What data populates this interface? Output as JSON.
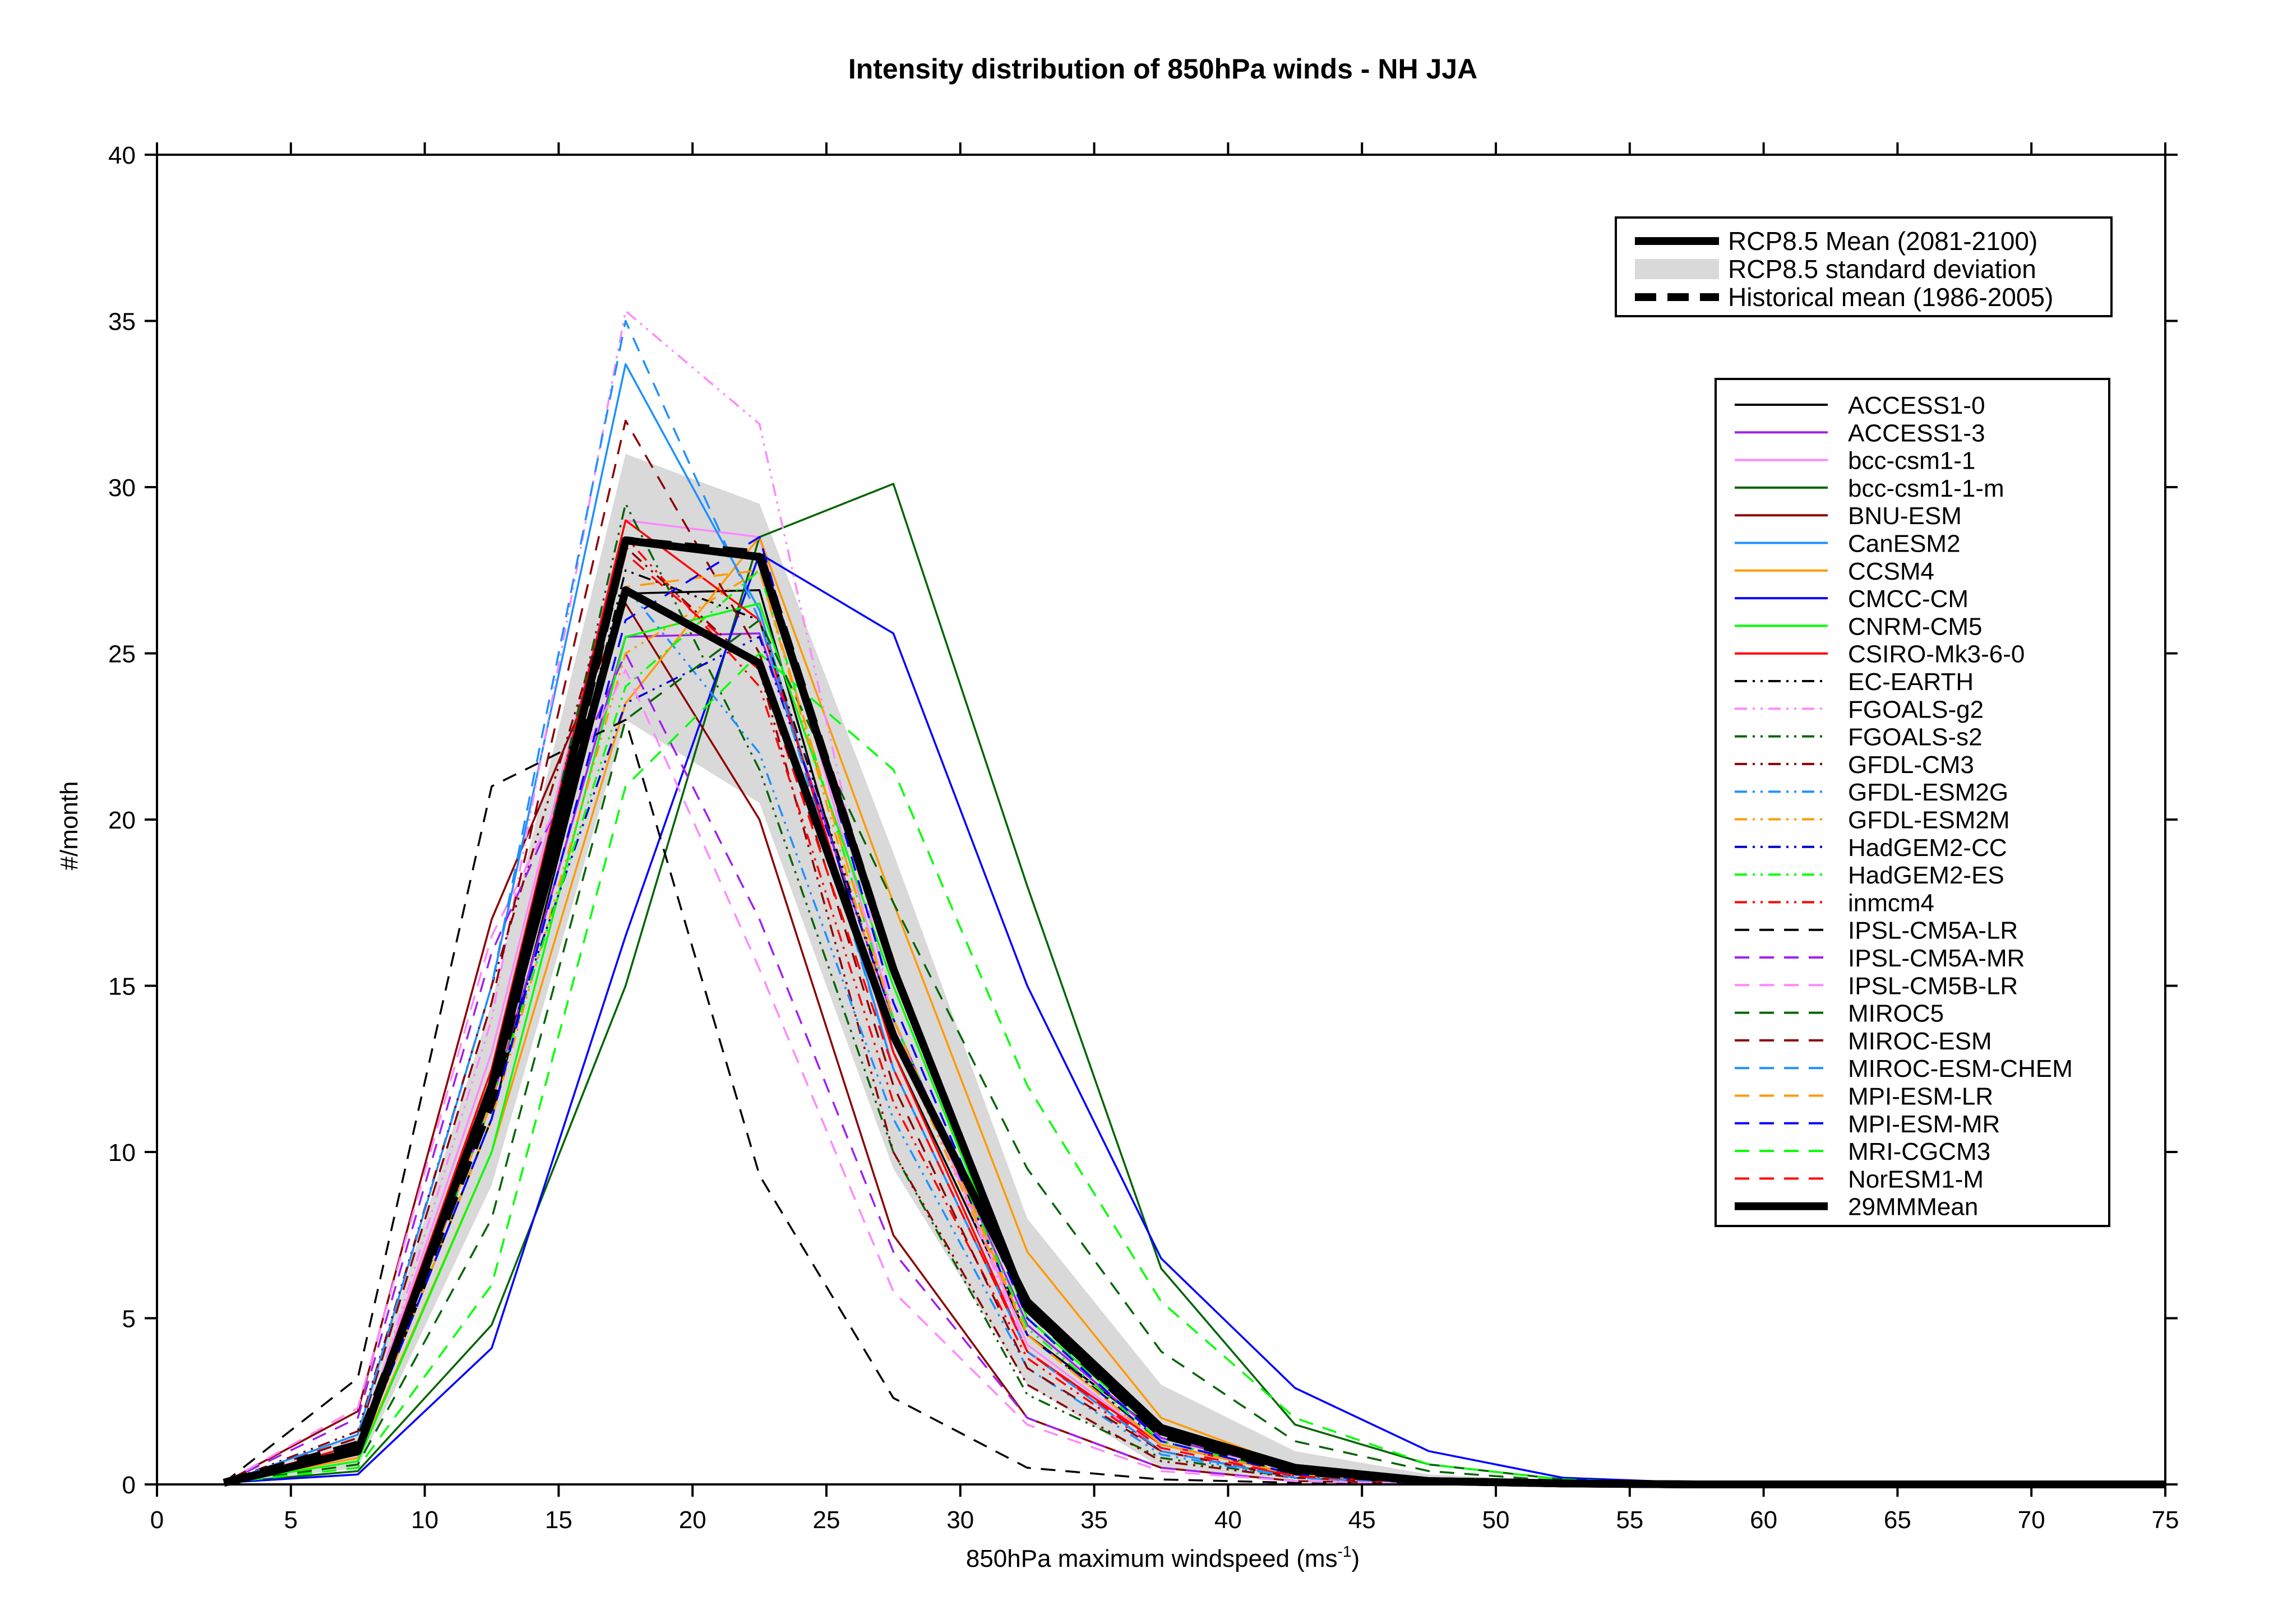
{
  "chart_data": {
    "type": "line",
    "title": "Intensity distribution of 850hPa winds - NH JJA",
    "xlabel": "850hPa maximum windspeed (ms",
    "xlabel_sup": "-1",
    "xlabel_close": ")",
    "ylabel": "#/month",
    "xlim": [
      0,
      75
    ],
    "ylim": [
      0,
      40
    ],
    "xticks": [
      0,
      5,
      10,
      15,
      20,
      25,
      30,
      35,
      40,
      45,
      50,
      55,
      60,
      65,
      70,
      75
    ],
    "yticks": [
      0,
      5,
      10,
      15,
      20,
      25,
      30,
      35,
      40
    ],
    "grid": false,
    "x": [
      2.5,
      7.5,
      12.5,
      17.5,
      22.5,
      27.5,
      32.5,
      37.5,
      42.5,
      47.5,
      52.5,
      57.5,
      62.5,
      67.5,
      72.5,
      75
    ],
    "std_band": {
      "label": "RCP8.5 standard deviation",
      "color": "#d9d9d9",
      "upper": [
        0.1,
        1.5,
        14.5,
        31.0,
        29.5,
        19.0,
        8.0,
        3.0,
        1.0,
        0.3,
        0.1,
        0.05,
        0,
        0,
        0,
        0
      ],
      "lower": [
        0.0,
        0.5,
        9.0,
        23.0,
        20.5,
        9.5,
        3.0,
        0.5,
        0.1,
        0.0,
        0.0,
        0,
        0,
        0,
        0,
        0
      ]
    },
    "summary_series": [
      {
        "name": "RCP8.5 Mean (2081-2100)",
        "color": "#000000",
        "dash": "solid",
        "values": [
          0.05,
          1.0,
          12.0,
          26.9,
          24.7,
          13.5,
          5.5,
          1.7,
          0.5,
          0.1,
          0.03,
          0,
          0,
          0,
          0,
          0
        ]
      },
      {
        "name": "Historical mean (1986-2005)",
        "color": "#000000",
        "dash": "dashed",
        "values": [
          0.05,
          1.2,
          11.5,
          28.4,
          28.0,
          15.5,
          5.3,
          1.5,
          0.4,
          0.1,
          0.03,
          0,
          0,
          0,
          0,
          0
        ]
      }
    ],
    "series": [
      {
        "name": "ACCESS1-0",
        "color": "#000000",
        "dash": "solid",
        "values": [
          0.05,
          0.9,
          11.0,
          26.8,
          26.9,
          13.0,
          4.5,
          1.5,
          0.4,
          0.1,
          0.02,
          0,
          0,
          0,
          0,
          0
        ]
      },
      {
        "name": "ACCESS1-3",
        "color": "#a020f0",
        "dash": "solid",
        "values": [
          0.05,
          1.0,
          11.5,
          25.5,
          25.6,
          14.0,
          4.8,
          1.4,
          0.4,
          0.1,
          0.02,
          0,
          0,
          0,
          0,
          0
        ]
      },
      {
        "name": "bcc-csm1-1",
        "color": "#ff88ff",
        "dash": "solid",
        "values": [
          0.05,
          1.2,
          13.0,
          29.0,
          28.5,
          14.0,
          4.2,
          1.2,
          0.3,
          0.1,
          0.02,
          0,
          0,
          0,
          0,
          0
        ]
      },
      {
        "name": "bcc-csm1-1-m",
        "color": "#006400",
        "dash": "solid",
        "values": [
          0.05,
          0.4,
          4.8,
          15.0,
          28.5,
          30.1,
          18.0,
          6.5,
          1.8,
          0.6,
          0.15,
          0.05,
          0,
          0,
          0,
          0
        ]
      },
      {
        "name": "BNU-ESM",
        "color": "#8b0000",
        "dash": "solid",
        "values": [
          0.05,
          2.2,
          17.0,
          26.5,
          20.0,
          7.5,
          2.0,
          0.5,
          0.1,
          0.03,
          0,
          0,
          0,
          0,
          0,
          0
        ]
      },
      {
        "name": "CanESM2",
        "color": "#1e90ff",
        "dash": "solid",
        "values": [
          0.05,
          1.5,
          15.0,
          33.7,
          26.3,
          12.5,
          4.0,
          1.0,
          0.2,
          0.05,
          0,
          0,
          0,
          0,
          0,
          0
        ]
      },
      {
        "name": "CCSM4",
        "color": "#ff9900",
        "dash": "solid",
        "values": [
          0.05,
          0.8,
          10.0,
          23.5,
          28.5,
          17.5,
          7.0,
          2.0,
          0.5,
          0.1,
          0.02,
          0,
          0,
          0,
          0,
          0
        ]
      },
      {
        "name": "CMCC-CM",
        "color": "#0000ff",
        "dash": "solid",
        "values": [
          0.05,
          0.3,
          4.1,
          16.5,
          28.0,
          25.6,
          15.0,
          6.8,
          2.9,
          1.0,
          0.2,
          0.05,
          0,
          0,
          0,
          0
        ]
      },
      {
        "name": "CNRM-CM5",
        "color": "#00ff00",
        "dash": "solid",
        "values": [
          0.05,
          0.7,
          10.0,
          25.5,
          26.5,
          15.0,
          5.0,
          1.5,
          0.4,
          0.1,
          0.02,
          0,
          0,
          0,
          0,
          0
        ]
      },
      {
        "name": "CSIRO-Mk3-6-0",
        "color": "#ff0000",
        "dash": "solid",
        "values": [
          0.05,
          1.2,
          12.5,
          29.0,
          26.0,
          13.0,
          4.0,
          1.2,
          0.3,
          0.05,
          0,
          0,
          0,
          0,
          0,
          0
        ]
      },
      {
        "name": "EC-EARTH",
        "color": "#000000",
        "dash": "dashdotdot",
        "values": [
          0.05,
          0.9,
          11.5,
          27.5,
          26.0,
          14.0,
          4.5,
          1.3,
          0.3,
          0.05,
          0,
          0,
          0,
          0,
          0,
          0
        ]
      },
      {
        "name": "FGOALS-g2",
        "color": "#ff88ff",
        "dash": "dashdotdot",
        "values": [
          0.05,
          1.0,
          14.0,
          35.3,
          31.9,
          14.0,
          4.0,
          1.0,
          0.2,
          0.05,
          0,
          0,
          0,
          0,
          0,
          0
        ]
      },
      {
        "name": "FGOALS-s2",
        "color": "#006400",
        "dash": "dashdotdot",
        "values": [
          0.05,
          0.9,
          12.0,
          29.5,
          21.5,
          10.0,
          2.7,
          0.8,
          0.2,
          0.03,
          0,
          0,
          0,
          0,
          0,
          0
        ]
      },
      {
        "name": "GFDL-CM3",
        "color": "#8b0000",
        "dash": "dashdotdot",
        "values": [
          0.05,
          1.6,
          15.0,
          28.2,
          24.5,
          10.0,
          3.0,
          0.7,
          0.2,
          0.03,
          0,
          0,
          0,
          0,
          0,
          0
        ]
      },
      {
        "name": "GFDL-ESM2G",
        "color": "#1e90ff",
        "dash": "dashdotdot",
        "values": [
          0.05,
          1.0,
          12.0,
          27.0,
          22.0,
          11.0,
          3.5,
          0.9,
          0.2,
          0.03,
          0,
          0,
          0,
          0,
          0,
          0
        ]
      },
      {
        "name": "GFDL-ESM2M",
        "color": "#ff9900",
        "dash": "dashdotdot",
        "values": [
          0.05,
          0.9,
          11.0,
          25.0,
          27.5,
          13.5,
          4.5,
          1.2,
          0.3,
          0.05,
          0,
          0,
          0,
          0,
          0,
          0
        ]
      },
      {
        "name": "HadGEM2-CC",
        "color": "#0000cc",
        "dash": "dashdotdot",
        "values": [
          0.05,
          1.1,
          12.0,
          23.5,
          25.5,
          14.0,
          4.5,
          1.3,
          0.3,
          0.05,
          0,
          0,
          0,
          0,
          0,
          0
        ]
      },
      {
        "name": "HadGEM2-ES",
        "color": "#00ff00",
        "dash": "dashdotdot",
        "values": [
          0.05,
          1.0,
          11.5,
          24.0,
          27.5,
          14.0,
          4.7,
          1.3,
          0.3,
          0.05,
          0,
          0,
          0,
          0,
          0,
          0
        ]
      },
      {
        "name": "inmcm4",
        "color": "#ff0000",
        "dash": "dashdotdot",
        "values": [
          0.05,
          1.0,
          12.5,
          28.5,
          24.0,
          11.5,
          3.8,
          1.0,
          0.25,
          0.03,
          0,
          0,
          0,
          0,
          0,
          0
        ]
      },
      {
        "name": "IPSL-CM5A-LR",
        "color": "#000000",
        "dash": "dashed",
        "values": [
          0.05,
          3.2,
          21.0,
          23.0,
          9.3,
          2.6,
          0.5,
          0.15,
          0.05,
          0.02,
          0,
          0,
          0,
          0,
          0,
          0
        ]
      },
      {
        "name": "IPSL-CM5A-MR",
        "color": "#a020f0",
        "dash": "dashed",
        "values": [
          0.05,
          2.0,
          16.0,
          25.0,
          17.0,
          7.0,
          2.0,
          0.5,
          0.1,
          0.02,
          0,
          0,
          0,
          0,
          0,
          0
        ]
      },
      {
        "name": "IPSL-CM5B-LR",
        "color": "#ff88ff",
        "dash": "dashed",
        "values": [
          0.05,
          2.3,
          16.5,
          24.5,
          15.5,
          5.8,
          1.8,
          0.4,
          0.1,
          0.02,
          0,
          0,
          0,
          0,
          0,
          0
        ]
      },
      {
        "name": "MIROC5",
        "color": "#006400",
        "dash": "dashed",
        "values": [
          0.05,
          0.6,
          8.0,
          23.0,
          26.0,
          17.5,
          9.5,
          4.0,
          1.3,
          0.4,
          0.1,
          0.02,
          0,
          0,
          0,
          0
        ]
      },
      {
        "name": "MIROC-ESM",
        "color": "#8b0000",
        "dash": "dashed",
        "values": [
          0.05,
          1.4,
          14.5,
          32.0,
          25.0,
          12.0,
          3.5,
          1.0,
          0.2,
          0.05,
          0,
          0,
          0,
          0,
          0,
          0
        ]
      },
      {
        "name": "MIROC-ESM-CHEM",
        "color": "#1e90ff",
        "dash": "dashed",
        "values": [
          0.05,
          1.5,
          15.0,
          35.0,
          26.0,
          12.5,
          4.0,
          1.0,
          0.2,
          0.05,
          0,
          0,
          0,
          0,
          0,
          0
        ]
      },
      {
        "name": "MPI-ESM-LR",
        "color": "#ff9900",
        "dash": "dashed",
        "values": [
          0.05,
          0.9,
          11.5,
          27.0,
          27.5,
          14.0,
          4.5,
          1.2,
          0.3,
          0.05,
          0,
          0,
          0,
          0,
          0,
          0
        ]
      },
      {
        "name": "MPI-ESM-MR",
        "color": "#0000ff",
        "dash": "dashed",
        "values": [
          0.05,
          0.9,
          11.0,
          26.0,
          28.5,
          14.5,
          5.0,
          1.3,
          0.3,
          0.05,
          0,
          0,
          0,
          0,
          0,
          0
        ]
      },
      {
        "name": "MRI-CGCM3",
        "color": "#00ff00",
        "dash": "dashed",
        "values": [
          0.05,
          0.5,
          6.0,
          21.0,
          25.0,
          21.5,
          12.0,
          5.5,
          2.0,
          0.6,
          0.15,
          0.03,
          0,
          0,
          0,
          0
        ]
      },
      {
        "name": "NorESM1-M",
        "color": "#ff0000",
        "dash": "dashed",
        "values": [
          0.05,
          1.0,
          12.0,
          28.0,
          24.5,
          12.5,
          4.0,
          1.1,
          0.25,
          0.05,
          0,
          0,
          0,
          0,
          0,
          0
        ]
      },
      {
        "name": "29MMMean",
        "color": "#000000",
        "dash": "solid",
        "bold": true,
        "values": [
          0.05,
          1.0,
          12.0,
          28.4,
          27.9,
          15.5,
          5.3,
          1.6,
          0.45,
          0.1,
          0.03,
          0,
          0,
          0,
          0,
          0
        ]
      }
    ],
    "legend_top": {
      "placement": "top-right",
      "entries": [
        "RCP8.5 Mean (2081-2100)",
        "RCP8.5 standard deviation",
        "Historical mean (1986-2005)"
      ]
    },
    "legend_models": {
      "placement": "right"
    }
  }
}
